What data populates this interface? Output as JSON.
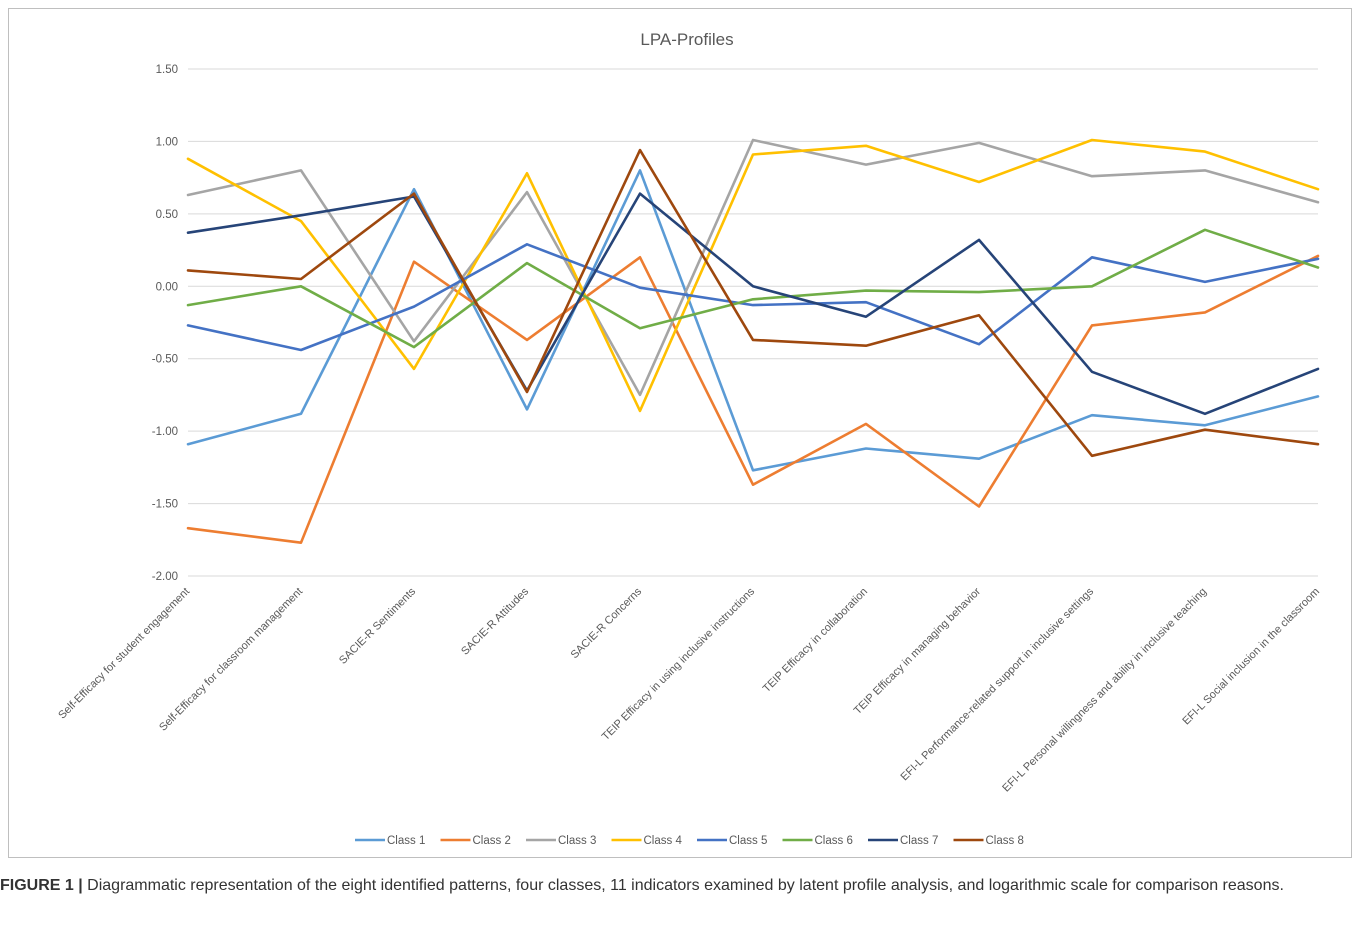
{
  "chart_data": {
    "type": "line",
    "title": "LPA-Profiles",
    "xlabel": "",
    "ylabel": "",
    "ylim": [
      -2.0,
      1.5
    ],
    "yticks": [
      "1.50",
      "1.00",
      "0.50",
      "0.00",
      "-0.50",
      "-1.00",
      "-1.50",
      "-2.00"
    ],
    "grid": true,
    "legend_position": "bottom",
    "categories": [
      "Self-Efficacy for student engagement",
      "Self-Efficacy for classroom management",
      "SACIE-R Sentiments",
      "SACIE-R Attitudes",
      "SACIE-R Concerns",
      "TEIP Efficacy in using inclusive instructions",
      "TEIP Efficacy in collaboration",
      "TEIP Efficacy in managing behavior",
      "EFI-L Performance-related support in inclusive settings",
      "EFI-L Personal willingness and ability in inclusive teaching",
      "EFI-L Social inclusion in the classroom"
    ],
    "series": [
      {
        "name": "Class 1",
        "color": "#5B9BD5",
        "values": [
          -1.09,
          -0.88,
          0.67,
          -0.85,
          0.8,
          -1.27,
          -1.12,
          -1.19,
          -0.89,
          -0.96,
          -0.76
        ]
      },
      {
        "name": "Class 2",
        "color": "#ED7D31",
        "values": [
          -1.67,
          -1.77,
          0.17,
          -0.37,
          0.2,
          -1.37,
          -0.95,
          -1.52,
          -0.27,
          -0.18,
          0.21
        ]
      },
      {
        "name": "Class 3",
        "color": "#A5A5A5",
        "values": [
          0.63,
          0.8,
          -0.38,
          0.65,
          -0.75,
          1.01,
          0.84,
          0.99,
          0.76,
          0.8,
          0.58
        ]
      },
      {
        "name": "Class 4",
        "color": "#FFC000",
        "values": [
          0.88,
          0.45,
          -0.57,
          0.78,
          -0.86,
          0.91,
          0.97,
          0.72,
          1.01,
          0.93,
          0.67
        ]
      },
      {
        "name": "Class 5",
        "color": "#4472C4",
        "values": [
          -0.27,
          -0.44,
          -0.14,
          0.29,
          -0.01,
          -0.13,
          -0.11,
          -0.4,
          0.2,
          0.03,
          0.19
        ]
      },
      {
        "name": "Class 6",
        "color": "#70AD47",
        "values": [
          -0.13,
          0.0,
          -0.42,
          0.16,
          -0.29,
          -0.09,
          -0.03,
          -0.04,
          0.0,
          0.39,
          0.13
        ]
      },
      {
        "name": "Class 7",
        "color": "#264478",
        "values": [
          0.37,
          0.49,
          0.62,
          -0.72,
          0.64,
          0.0,
          -0.21,
          0.32,
          -0.59,
          -0.88,
          -0.57
        ]
      },
      {
        "name": "Class 8",
        "color": "#9E480E",
        "values": [
          0.11,
          0.05,
          0.64,
          -0.73,
          0.94,
          -0.37,
          -0.41,
          -0.2,
          -1.17,
          -0.99,
          -1.09
        ]
      }
    ]
  },
  "caption": {
    "label": "FIGURE 1 |",
    "text": " Diagrammatic representation of the eight identified patterns, four classes, 11 indicators examined by latent profile analysis, and logarithmic scale for comparison reasons."
  }
}
